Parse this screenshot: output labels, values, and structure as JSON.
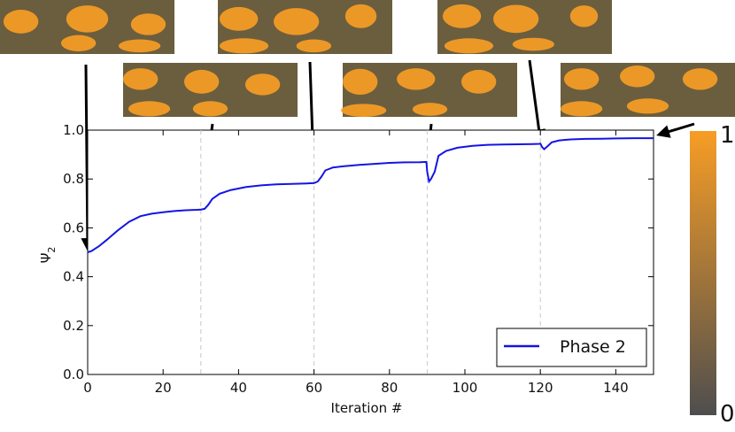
{
  "chart_data": {
    "type": "line",
    "xlabel": "Iteration #",
    "ylabel": "Ψ",
    "ylabel_sub": "2",
    "xlim": [
      0,
      150
    ],
    "ylim": [
      0.0,
      1.0
    ],
    "x_ticks": [
      0,
      20,
      40,
      60,
      80,
      100,
      120,
      140
    ],
    "x_tick_labels": [
      "0",
      "20",
      "40",
      "60",
      "80",
      "100",
      "120",
      "140"
    ],
    "y_ticks": [
      0.0,
      0.2,
      0.4,
      0.6,
      0.8,
      1.0
    ],
    "y_tick_labels": [
      "0.0",
      "0.2",
      "0.4",
      "0.6",
      "0.8",
      "1.0"
    ],
    "phase_boundaries": [
      30,
      60,
      90,
      120
    ],
    "legend": {
      "position": "lower-right",
      "entries": [
        "Phase 2"
      ]
    },
    "series": [
      {
        "name": "Phase 2",
        "color": "#1414e6",
        "x": [
          0,
          1,
          3,
          5,
          8,
          11,
          14,
          17,
          20,
          23,
          26,
          29,
          30,
          31,
          32,
          33,
          35,
          38,
          42,
          46,
          50,
          54,
          58,
          59.5,
          60,
          61,
          62,
          63,
          65,
          68,
          72,
          76,
          80,
          84,
          88,
          89.8,
          90,
          90.5,
          91,
          92,
          93,
          95,
          98,
          102,
          106,
          110,
          114,
          118,
          119.8,
          120,
          120.5,
          121,
          122,
          123,
          125,
          128,
          132,
          136,
          140,
          145,
          150
        ],
        "y": [
          0.5,
          0.505,
          0.525,
          0.55,
          0.59,
          0.625,
          0.648,
          0.658,
          0.664,
          0.669,
          0.672,
          0.674,
          0.675,
          0.678,
          0.695,
          0.718,
          0.74,
          0.755,
          0.767,
          0.774,
          0.778,
          0.78,
          0.782,
          0.783,
          0.783,
          0.79,
          0.81,
          0.835,
          0.847,
          0.852,
          0.858,
          0.862,
          0.866,
          0.868,
          0.869,
          0.87,
          0.83,
          0.79,
          0.8,
          0.83,
          0.895,
          0.915,
          0.928,
          0.936,
          0.94,
          0.941,
          0.942,
          0.943,
          0.944,
          0.945,
          0.93,
          0.922,
          0.935,
          0.95,
          0.958,
          0.962,
          0.964,
          0.965,
          0.966,
          0.967,
          0.967
        ]
      }
    ],
    "colorbar": {
      "min_label": "0",
      "max_label": "1",
      "color_low": "#4e4e4e",
      "color_high": "#f79d25"
    },
    "snapshots": [
      {
        "iteration": 0,
        "row": "top"
      },
      {
        "iteration": 30,
        "row": "bottom"
      },
      {
        "iteration": 60,
        "row": "top"
      },
      {
        "iteration": 90,
        "row": "bottom"
      },
      {
        "iteration": 120,
        "row": "top"
      },
      {
        "iteration": 150,
        "row": "bottom"
      }
    ]
  }
}
